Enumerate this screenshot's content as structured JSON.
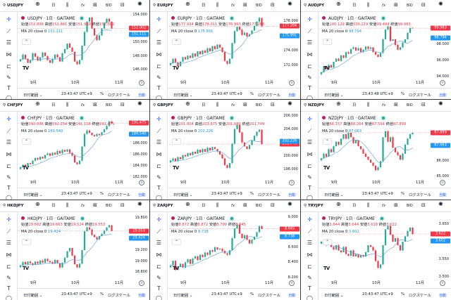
{
  "common": {
    "interval": "日",
    "fx": "f𝑥",
    "bid": "BID",
    "date_range": "日付範囲 ⌄",
    "percent": "%",
    "log_scale": "ログスケール",
    "auto": "自動",
    "ma_label": "MA 20 close 0",
    "open_label": "始値",
    "high_label": "高値",
    "low_label": "安値",
    "close_label": "終値",
    "months": [
      "9月",
      "10月",
      "11月"
    ],
    "colors": {
      "up": "#22ab94",
      "down": "#f23645",
      "ma": "#5b9bd5",
      "accent": "#2962ff"
    }
  },
  "panels": [
    {
      "symbol": "USDJPY",
      "title": "USDJPY · 1日 · GAITAME",
      "open": "152.836",
      "high": "152.861",
      "low": "151.960",
      "close": "152.002",
      "ma": "151.111",
      "time": "23:43:47 UTC+9",
      "range": [
        144.7,
        154.4
      ],
      "ticks": [
        "146.000",
        "148.000",
        "150.000",
        "154.000"
      ],
      "closes": [
        147.5,
        148.2,
        147.6,
        147.0,
        147.4,
        148.4,
        147.9,
        147.3,
        147.8,
        148.5,
        148.0,
        147.4,
        147.0,
        147.6,
        148.2,
        147.8,
        147.2,
        148.4,
        149.0,
        149.8,
        149.2,
        148.6,
        147.2,
        146.8,
        147.4,
        149.5,
        151.5,
        153.0,
        153.6,
        152.0,
        151.0,
        150.3,
        151.0,
        152.0,
        152.8,
        153.4,
        153.0,
        152.0
      ]
    },
    {
      "symbol": "EURJPY",
      "title": "EURJPY · 1日 · GAITAME",
      "open": "177.934",
      "high": "178.011",
      "low": "176.993",
      "close": "177.266",
      "ma": "175.991",
      "time": "23:43:47 UTC+9",
      "range": [
        170.2,
        179.2
      ],
      "ticks": [
        "172.000",
        "174.000",
        "178.000"
      ],
      "closes": [
        172.3,
        172.9,
        172.4,
        171.9,
        172.5,
        173.1,
        172.8,
        173.3,
        173.0,
        173.6,
        173.2,
        173.9,
        173.5,
        174.0,
        173.7,
        174.3,
        173.9,
        174.6,
        174.2,
        174.8,
        174.4,
        173.8,
        172.6,
        172.2,
        172.9,
        175.0,
        176.6,
        177.2,
        176.8,
        176.1,
        176.4,
        175.9,
        176.2,
        176.7,
        177.3,
        177.9,
        178.4,
        177.27
      ]
    },
    {
      "symbol": "AUDJPY",
      "title": "AUDJPY · 1日 · GAITAME",
      "open": "100.129",
      "high": "100.219",
      "low": "99.484",
      "close": "99.983",
      "ma": "98.794",
      "time": "23:43:48 UTC+9",
      "range": [
        93.7,
        102.0
      ],
      "ticks": [
        "94.000",
        "96.000",
        "98.000"
      ],
      "closes": [
        94.5,
        95.2,
        94.9,
        95.4,
        95.1,
        95.8,
        96.2,
        95.9,
        96.6,
        96.3,
        97.0,
        96.8,
        97.4,
        97.6,
        97.2,
        97.5,
        97.0,
        97.3,
        97.7,
        97.4,
        97.6,
        97.0,
        96.7,
        96.4,
        96.9,
        98.6,
        99.8,
        100.2,
        98.4,
        98.6,
        97.9,
        97.3,
        97.6,
        98.2,
        98.6,
        99.4,
        100.0,
        99.98
      ]
    },
    {
      "symbol": "CHFJPY",
      "title": "CHFJPY · 1日 · GAITAME",
      "open": "192.036",
      "high": "192.254",
      "low": "191.116",
      "close": "191.475",
      "ma": "189.540",
      "time": "23:43:47 UTC+9",
      "range": [
        181.8,
        193.5
      ],
      "ticks": [
        "182.000",
        "184.000",
        "186.000",
        "188.000"
      ],
      "closes": [
        183.8,
        184.2,
        184.0,
        184.5,
        184.3,
        184.9,
        185.4,
        185.1,
        185.6,
        185.3,
        185.9,
        186.2,
        185.8,
        186.3,
        186.0,
        186.6,
        186.2,
        186.8,
        186.5,
        186.9,
        186.3,
        185.8,
        184.6,
        184.3,
        184.9,
        187.4,
        189.6,
        190.2,
        189.8,
        189.4,
        189.2,
        189.6,
        189.4,
        189.9,
        190.4,
        191.0,
        191.8,
        191.48
      ]
    },
    {
      "symbol": "GBPJPY",
      "title": "GBPJPY · 1日 · GAITAME",
      "open": "201.804",
      "high": "203.875",
      "low": "201.680",
      "close": "201.749",
      "ma": "202.226",
      "time": "23:43:47 UTC+9",
      "range": [
        196.6,
        206.6
      ],
      "ticks": [
        "198.000",
        "200.000",
        "204.000",
        "206.000"
      ],
      "closes": [
        199.3,
        199.6,
        199.2,
        199.8,
        199.5,
        200.1,
        199.9,
        200.4,
        200.1,
        200.6,
        200.3,
        200.9,
        200.5,
        201.0,
        200.6,
        201.2,
        200.8,
        201.3,
        201.0,
        200.7,
        200.2,
        199.6,
        198.6,
        198.2,
        198.9,
        201.8,
        204.0,
        204.6,
        203.5,
        202.0,
        201.4,
        201.0,
        201.6,
        202.3,
        203.0,
        203.6,
        203.9,
        201.75
      ]
    },
    {
      "symbol": "NZDJPY",
      "title": "NZDJPY · 1日 · GAITAME",
      "open": "88.157",
      "high": "88.264",
      "low": "87.594",
      "close": "87.899",
      "ma": "87.063",
      "time": "23:43:47 UTC+9",
      "range": [
        84.85,
        89.3
      ],
      "ticks": [
        "85.000",
        "86.000"
      ],
      "closes": [
        86.2,
        86.5,
        86.3,
        86.8,
        86.6,
        87.0,
        87.3,
        87.1,
        87.5,
        87.8,
        87.5,
        87.9,
        87.6,
        87.2,
        87.4,
        87.0,
        86.8,
        86.5,
        86.3,
        86.1,
        85.9,
        85.7,
        85.4,
        85.6,
        86.0,
        87.6,
        88.0,
        87.3,
        87.6,
        86.9,
        86.6,
        86.4,
        86.1,
        86.5,
        87.1,
        87.5,
        87.8,
        87.9
      ]
    },
    {
      "symbol": "HKDJPY",
      "title": "HKDJPY · 1日 · GAITAME",
      "open": "19.662",
      "high": "19.663",
      "low": "19.524",
      "close": "19.553",
      "ma": "19.424",
      "time": "23:43:47 UTC+9",
      "range": [
        18.67,
        19.9
      ],
      "ticks": [
        "18.800",
        "19.000",
        "19.200",
        "19.800"
      ],
      "closes": [
        18.92,
        18.98,
        18.94,
        18.99,
        18.96,
        18.93,
        18.99,
        18.95,
        19.01,
        18.97,
        19.04,
        19.0,
        18.98,
        18.95,
        19.02,
        18.96,
        18.88,
        18.97,
        19.06,
        19.18,
        19.24,
        19.1,
        18.94,
        18.88,
        18.95,
        19.2,
        19.55,
        19.62,
        19.58,
        19.48,
        19.44,
        19.4,
        19.46,
        19.5,
        19.56,
        19.62,
        19.66,
        19.553
      ]
    },
    {
      "symbol": "ZARJPY",
      "title": "ZARJPY · 1日 · GAITAME",
      "open": "8.872",
      "high": "8.872",
      "low": "8.790",
      "close": "8.845",
      "ma": "8.738",
      "time": "23:43:47 UTC+9",
      "range": [
        8.18,
        9.065
      ],
      "ticks": [
        "8.200",
        "8.400",
        "8.600",
        "9.000"
      ],
      "closes": [
        8.36,
        8.42,
        8.3,
        8.34,
        8.38,
        8.33,
        8.4,
        8.44,
        8.38,
        8.45,
        8.48,
        8.43,
        8.5,
        8.47,
        8.53,
        8.5,
        8.56,
        8.54,
        8.6,
        8.57,
        8.58,
        8.55,
        8.52,
        8.5,
        8.56,
        8.72,
        8.85,
        8.9,
        8.78,
        8.72,
        8.76,
        8.7,
        8.65,
        8.7,
        8.74,
        8.8,
        8.88,
        8.845
      ]
    },
    {
      "symbol": "TRYJPY",
      "title": "TRYJPY · 1日 · GAITAME",
      "open": "3.644",
      "high": "3.644",
      "low": "3.618",
      "close": "3.622",
      "ma": "3.602",
      "time": "23:43:47 UTC+9",
      "range": [
        3.494,
        3.684
      ],
      "ticks": [
        "3.500",
        "3.550",
        "3.650"
      ],
      "closes": [
        3.6,
        3.595,
        3.59,
        3.598,
        3.585,
        3.578,
        3.59,
        3.575,
        3.57,
        3.585,
        3.565,
        3.56,
        3.575,
        3.558,
        3.565,
        3.555,
        3.562,
        3.558,
        3.57,
        3.59,
        3.585,
        3.575,
        3.545,
        3.525,
        3.535,
        3.59,
        3.635,
        3.645,
        3.62,
        3.6,
        3.61,
        3.59,
        3.575,
        3.6,
        3.615,
        3.63,
        3.64,
        3.622
      ]
    }
  ]
}
